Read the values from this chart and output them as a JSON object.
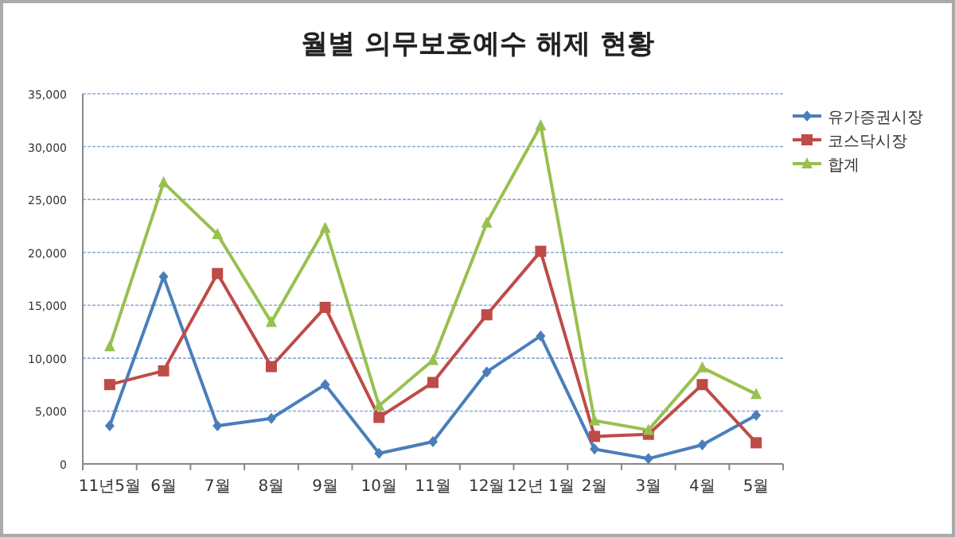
{
  "chart_data": {
    "type": "line",
    "title": "월별 의무보호예수 해제 현황",
    "categories": [
      "11년5월",
      "6월",
      "7월",
      "8월",
      "9월",
      "10월",
      "11월",
      "12월",
      "12년 1월",
      "2월",
      "3월",
      "4월",
      "5월"
    ],
    "series": [
      {
        "name": "유가증권시장",
        "color": "#4a7ebb",
        "marker": "diamond",
        "values": [
          3600,
          17700,
          3600,
          4300,
          7500,
          1000,
          2100,
          8700,
          12100,
          1400,
          500,
          1800,
          4600
        ]
      },
      {
        "name": "코스닥시장",
        "color": "#be4b48",
        "marker": "square",
        "values": [
          7500,
          8800,
          18000,
          9200,
          14800,
          4400,
          7700,
          14100,
          20100,
          2600,
          2800,
          7500,
          2000
        ]
      },
      {
        "name": "합계",
        "color": "#98c04f",
        "marker": "triangle",
        "values": [
          11100,
          26600,
          21700,
          13400,
          22300,
          5500,
          9800,
          22800,
          32000,
          4100,
          3200,
          9100,
          6600
        ]
      }
    ],
    "ylim": [
      0,
      35000
    ],
    "yticks": [
      0,
      {
        "value": 5000,
        "label": "5,000"
      },
      {
        "value": 10000,
        "label": "10,000"
      },
      {
        "value": 15000,
        "label": "15,000"
      },
      {
        "value": 20000,
        "label": "20,000"
      },
      {
        "value": 25000,
        "label": "25,000"
      },
      {
        "value": 30000,
        "label": "30,000"
      },
      {
        "value": 35000,
        "label": "35,000"
      }
    ],
    "grid": "y",
    "legend": "top right"
  }
}
